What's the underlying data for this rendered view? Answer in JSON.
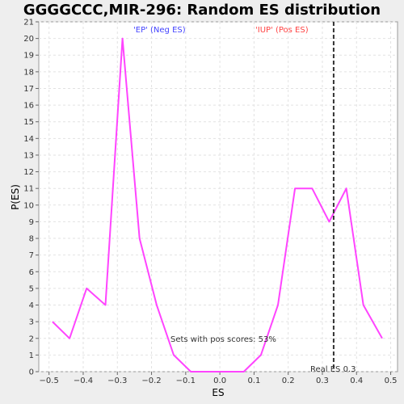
{
  "chart_data": {
    "type": "line",
    "title": "GGGGCCC,MIR-296: Random ES distribution",
    "xlabel": "ES",
    "ylabel": "P(ES)",
    "xlim": [
      -0.53,
      0.52
    ],
    "ylim": [
      0,
      21
    ],
    "xticks": [
      -0.5,
      -0.4,
      -0.3,
      -0.2,
      -0.1,
      0.0,
      0.1,
      0.2,
      0.3,
      0.4,
      0.5
    ],
    "xtick_labels": [
      "−0.5",
      "−0.4",
      "−0.3",
      "−0.2",
      "−0.1",
      "0.0",
      "0.1",
      "0.2",
      "0.3",
      "0.4",
      "0.5"
    ],
    "yticks": [
      0,
      1,
      2,
      3,
      4,
      5,
      6,
      7,
      8,
      9,
      10,
      11,
      12,
      13,
      14,
      15,
      16,
      17,
      18,
      19,
      20,
      21
    ],
    "grid": true,
    "series": [
      {
        "color": "#ff44ff",
        "x": [
          -0.49,
          -0.44,
          -0.39,
          -0.335,
          -0.285,
          -0.235,
          -0.185,
          -0.135,
          -0.085,
          -0.035,
          0.02,
          0.07,
          0.12,
          0.17,
          0.22,
          0.27,
          0.32,
          0.37,
          0.42,
          0.475
        ],
        "y": [
          3,
          2,
          5,
          4,
          20,
          8,
          4,
          1,
          0,
          0,
          0,
          0,
          1,
          4,
          11,
          11,
          9,
          11,
          4,
          2
        ]
      }
    ],
    "real_es": 0.333,
    "annotations": {
      "neg_label": "'EP' (Neg ES)",
      "pos_label": "'IUP' (Pos ES)",
      "pos_scores": "Sets with pos scores: 53%",
      "real_es_label": "Real ES 0.3"
    },
    "colors": {
      "neg": "#4444ff",
      "pos": "#ff4444",
      "line": "#ff44ff",
      "real_es": "#333333"
    }
  }
}
